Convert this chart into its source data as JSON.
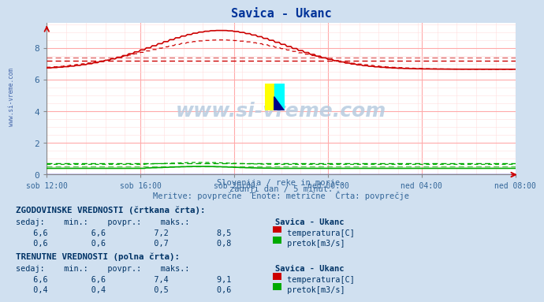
{
  "title": "Savica - Ukanc",
  "bg_color": "#d0e0f0",
  "plot_bg_color": "#ffffff",
  "grid_color_major": "#ffaaaa",
  "grid_color_minor": "#ffdddd",
  "x_tick_labels": [
    "sob 12:00",
    "sob 16:00",
    "sob 20:00",
    "ned 00:00",
    "ned 04:00",
    "ned 08:00"
  ],
  "x_tick_positions": [
    0,
    48,
    96,
    144,
    192,
    240
  ],
  "x_total_points": 241,
  "y_lim": [
    0,
    9.6
  ],
  "y_ticks": [
    0,
    2,
    4,
    6,
    8
  ],
  "temp_color": "#cc0000",
  "flow_color": "#00aa00",
  "subtitle_line1": "Slovenija / reke in morje.",
  "subtitle_line2": "zadnji dan / 5 minut.",
  "subtitle_line3": "Meritve: povprečne  Enote: metrične  Črta: povprečje",
  "watermark": "www.si-vreme.com",
  "sidebar_text": "www.si-vreme.com",
  "table_title1": "ZGODOVINSKE VREDNOSTI (črtkana črta):",
  "table_title2": "TRENUTNE VREDNOSTI (polna črta):",
  "hist_temp_sedaj": "6,6",
  "hist_temp_min": "6,6",
  "hist_temp_povpr": "7,2",
  "hist_temp_maks": "8,5",
  "hist_flow_sedaj": "0,6",
  "hist_flow_min": "0,6",
  "hist_flow_povpr": "0,7",
  "hist_flow_maks": "0,8",
  "curr_temp_sedaj": "6,6",
  "curr_temp_min": "6,6",
  "curr_temp_povpr": "7,4",
  "curr_temp_maks": "9,1",
  "curr_flow_sedaj": "0,4",
  "curr_flow_min": "0,4",
  "curr_flow_povpr": "0,5",
  "curr_flow_maks": "0,6",
  "temp_hist_avg": 7.2,
  "temp_curr_avg": 7.4,
  "flow_hist_avg": 0.7,
  "flow_curr_avg": 0.5
}
